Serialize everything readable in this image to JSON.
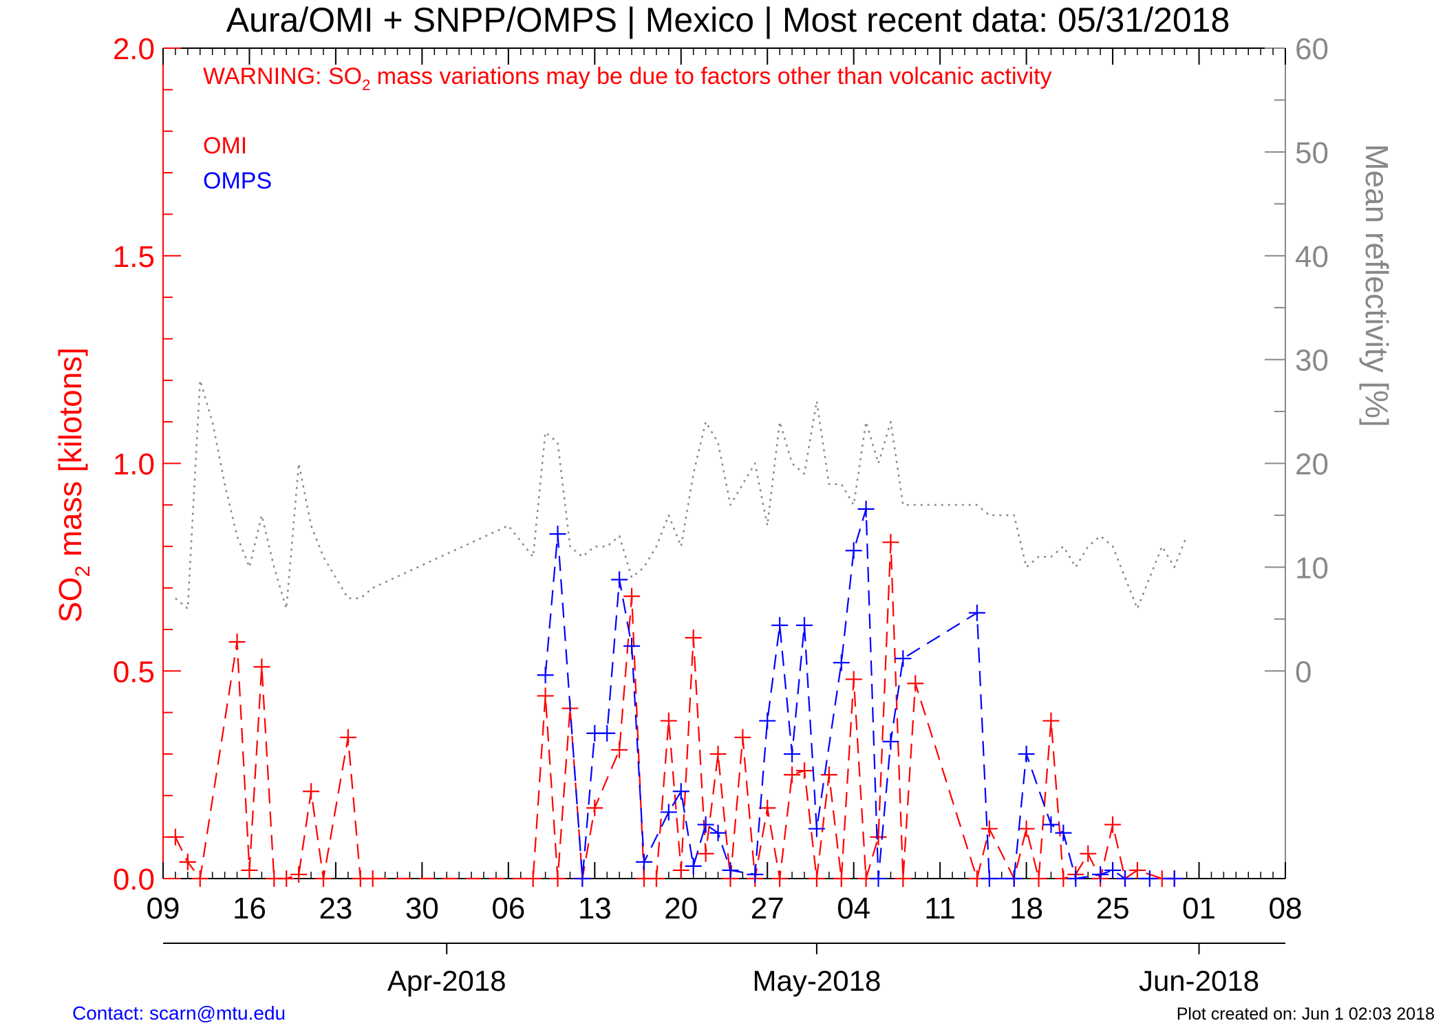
{
  "title": "Aura/OMI + SNPP/OMPS | Mexico | Most recent data: 05/31/2018",
  "warning": {
    "prefix": "WARNING: SO",
    "subscript": "2",
    "suffix": " mass variations may be due to factors other than volcanic activity"
  },
  "ylabel_left": {
    "prefix": "SO",
    "subscript": "2",
    "suffix": " mass [kilotons]"
  },
  "ylabel_right": "Mean reflectivity [%]",
  "legend": [
    {
      "label": "OMI",
      "color": "#ff0000"
    },
    {
      "label": "OMPS",
      "color": "#0000ff"
    }
  ],
  "footer": {
    "contact": "Contact: scarn@mtu.edu",
    "created": "Plot created on: Jun  1 02:03 2018"
  },
  "colors": {
    "omi": "#ff0000",
    "omps": "#0000ff",
    "reflectivity": "#888888",
    "right_axis": "#888888",
    "left_axis": "#ff0000"
  },
  "chart_data": {
    "type": "line",
    "x_unit": "day of year 2018",
    "xlim": [
      "2018-03-09",
      "2018-06-08"
    ],
    "ylim_left": [
      0,
      2
    ],
    "ylim_right": [
      -20,
      60
    ],
    "y_ticks_left": [
      "0.0",
      "0.5",
      "1.0",
      "1.5",
      "2.0"
    ],
    "y_ticks_right": [
      "0",
      "10",
      "20",
      "30",
      "40",
      "50",
      "60"
    ],
    "y_tick_values_right": [
      0,
      10,
      20,
      30,
      40,
      50,
      60
    ],
    "x_ticks": [
      {
        "date": "2018-03-09",
        "label": "09"
      },
      {
        "date": "2018-03-16",
        "label": "16"
      },
      {
        "date": "2018-03-23",
        "label": "23"
      },
      {
        "date": "2018-03-30",
        "label": "30"
      },
      {
        "date": "2018-04-06",
        "label": "06"
      },
      {
        "date": "2018-04-13",
        "label": "13"
      },
      {
        "date": "2018-04-20",
        "label": "20"
      },
      {
        "date": "2018-04-27",
        "label": "27"
      },
      {
        "date": "2018-05-04",
        "label": "04"
      },
      {
        "date": "2018-05-11",
        "label": "11"
      },
      {
        "date": "2018-05-18",
        "label": "18"
      },
      {
        "date": "2018-05-25",
        "label": "25"
      },
      {
        "date": "2018-06-01",
        "label": "01"
      },
      {
        "date": "2018-06-08",
        "label": "08"
      }
    ],
    "month_ticks": [
      {
        "date": "2018-04-01",
        "label": "Apr-2018"
      },
      {
        "date": "2018-05-01",
        "label": "May-2018"
      },
      {
        "date": "2018-06-01",
        "label": "Jun-2018"
      }
    ],
    "series": [
      {
        "name": "OMI",
        "axis": "left",
        "x": [
          "2018-03-10",
          "2018-03-11",
          "2018-03-12",
          "2018-03-15",
          "2018-03-16",
          "2018-03-17",
          "2018-03-18",
          "2018-03-19",
          "2018-03-20",
          "2018-03-21",
          "2018-03-22",
          "2018-03-24",
          "2018-03-25",
          "2018-03-26",
          "2018-04-08",
          "2018-04-09",
          "2018-04-10",
          "2018-04-11",
          "2018-04-12",
          "2018-04-13",
          "2018-04-15",
          "2018-04-16",
          "2018-04-17",
          "2018-04-18",
          "2018-04-19",
          "2018-04-20",
          "2018-04-21",
          "2018-04-22",
          "2018-04-23",
          "2018-04-24",
          "2018-04-25",
          "2018-04-26",
          "2018-04-27",
          "2018-04-28",
          "2018-04-29",
          "2018-04-30",
          "2018-05-01",
          "2018-05-02",
          "2018-05-03",
          "2018-05-04",
          "2018-05-05",
          "2018-05-06",
          "2018-05-07",
          "2018-05-08",
          "2018-05-09",
          "2018-05-14",
          "2018-05-15",
          "2018-05-17",
          "2018-05-18",
          "2018-05-19",
          "2018-05-20",
          "2018-05-21",
          "2018-05-22",
          "2018-05-23",
          "2018-05-24",
          "2018-05-25",
          "2018-05-26",
          "2018-05-27",
          "2018-05-29",
          "2018-05-30"
        ],
        "y": [
          0.1,
          0.04,
          0.0,
          0.57,
          0.02,
          0.51,
          0.0,
          0.0,
          0.01,
          0.21,
          0.0,
          0.34,
          0.0,
          0.0,
          0.0,
          0.44,
          0.0,
          0.41,
          0.0,
          0.17,
          0.31,
          0.68,
          0.0,
          0.0,
          0.38,
          0.02,
          0.58,
          0.06,
          0.3,
          0.0,
          0.34,
          0.0,
          0.17,
          0.0,
          0.25,
          0.26,
          0.0,
          0.25,
          0.0,
          0.48,
          0.0,
          0.1,
          0.81,
          0.0,
          0.47,
          0.0,
          0.12,
          0.0,
          0.12,
          0.0,
          0.38,
          0.0,
          0.01,
          0.06,
          0.0,
          0.13,
          0.0,
          0.02,
          0.0,
          0.0
        ]
      },
      {
        "name": "OMPS",
        "axis": "left",
        "x": [
          "2018-04-09",
          "2018-04-10",
          "2018-04-12",
          "2018-04-13",
          "2018-04-14",
          "2018-04-15",
          "2018-04-16",
          "2018-04-17",
          "2018-04-19",
          "2018-04-20",
          "2018-04-21",
          "2018-04-22",
          "2018-04-23",
          "2018-04-24",
          "2018-04-26",
          "2018-04-27",
          "2018-04-28",
          "2018-04-29",
          "2018-04-30",
          "2018-05-01",
          "2018-05-03",
          "2018-05-04",
          "2018-05-05",
          "2018-05-06",
          "2018-05-07",
          "2018-05-08",
          "2018-05-14",
          "2018-05-15",
          "2018-05-17",
          "2018-05-18",
          "2018-05-20",
          "2018-05-21",
          "2018-05-22",
          "2018-05-24",
          "2018-05-25",
          "2018-05-26",
          "2018-05-28",
          "2018-05-30"
        ],
        "y": [
          0.49,
          0.83,
          0.0,
          0.35,
          0.35,
          0.72,
          0.56,
          0.04,
          0.16,
          0.21,
          0.03,
          0.13,
          0.11,
          0.02,
          0.01,
          0.38,
          0.61,
          0.3,
          0.61,
          0.12,
          0.52,
          0.79,
          0.89,
          0.0,
          0.33,
          0.53,
          0.64,
          0.0,
          0.0,
          0.3,
          0.13,
          0.11,
          0.0,
          0.01,
          0.02,
          0.0,
          0.0,
          0.0
        ]
      },
      {
        "name": "Mean reflectivity",
        "axis": "right",
        "x": [
          "2018-03-10",
          "2018-03-11",
          "2018-03-12",
          "2018-03-13",
          "2018-03-14",
          "2018-03-15",
          "2018-03-16",
          "2018-03-17",
          "2018-03-18",
          "2018-03-19",
          "2018-03-20",
          "2018-03-21",
          "2018-03-22",
          "2018-03-23",
          "2018-03-24",
          "2018-03-25",
          "2018-03-26",
          "2018-04-06",
          "2018-04-08",
          "2018-04-09",
          "2018-04-10",
          "2018-04-11",
          "2018-04-12",
          "2018-04-13",
          "2018-04-14",
          "2018-04-15",
          "2018-04-16",
          "2018-04-17",
          "2018-04-18",
          "2018-04-19",
          "2018-04-20",
          "2018-04-21",
          "2018-04-22",
          "2018-04-23",
          "2018-04-24",
          "2018-04-25",
          "2018-04-26",
          "2018-04-27",
          "2018-04-28",
          "2018-04-29",
          "2018-04-30",
          "2018-05-01",
          "2018-05-02",
          "2018-05-03",
          "2018-05-04",
          "2018-05-05",
          "2018-05-06",
          "2018-05-07",
          "2018-05-08",
          "2018-05-09",
          "2018-05-14",
          "2018-05-15",
          "2018-05-17",
          "2018-05-18",
          "2018-05-19",
          "2018-05-20",
          "2018-05-21",
          "2018-05-22",
          "2018-05-23",
          "2018-05-24",
          "2018-05-25",
          "2018-05-26",
          "2018-05-27",
          "2018-05-28",
          "2018-05-29",
          "2018-05-30",
          "2018-05-31"
        ],
        "y": [
          7,
          6,
          28,
          24,
          18,
          13,
          10,
          15,
          10,
          6,
          20,
          14,
          11,
          9,
          7,
          7,
          8,
          14,
          11,
          23,
          22,
          12,
          11,
          12,
          12,
          13,
          9,
          10,
          12,
          15,
          12,
          19,
          24,
          22,
          16,
          18,
          20,
          14,
          24,
          20,
          19,
          26,
          18,
          18,
          16,
          24,
          20,
          24,
          16,
          16,
          16,
          15,
          15,
          10,
          11,
          11,
          12,
          10,
          12,
          13,
          12,
          9,
          6,
          9,
          12,
          10,
          13
        ]
      }
    ]
  }
}
